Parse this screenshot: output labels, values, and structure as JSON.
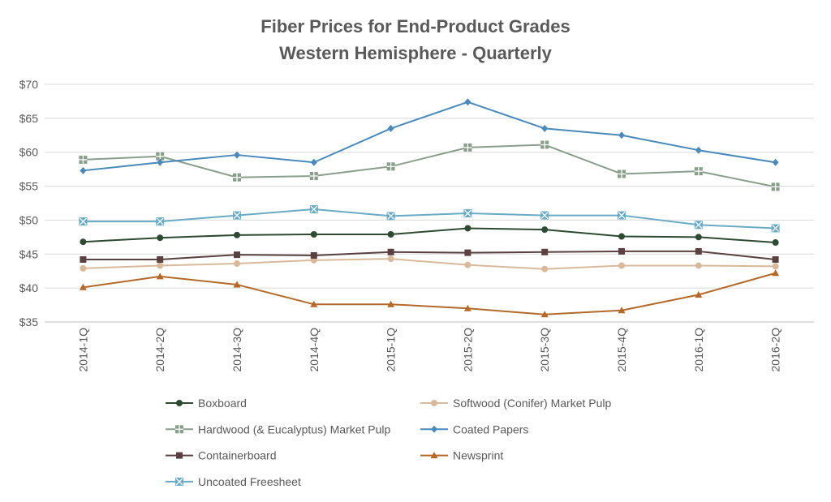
{
  "chart_data": {
    "type": "line",
    "title": "Fiber Prices for End-Product Grades",
    "subtitle": "Western Hemisphere - Quarterly",
    "xlabel": "",
    "ylabel": "",
    "ylim": [
      35,
      70
    ],
    "y_ticks": [
      35,
      40,
      45,
      50,
      55,
      60,
      65,
      70
    ],
    "y_tick_labels": [
      "$35",
      "$40",
      "$45",
      "$50",
      "$55",
      "$60",
      "$65",
      "$70"
    ],
    "grid": "horizontal",
    "legend_position": "bottom",
    "categories": [
      "2014-1Q",
      "2014-2Q",
      "2014-3Q",
      "2014-4Q",
      "2015-1Q",
      "2015-2Q",
      "2015-3Q",
      "2015-4Q",
      "2016-1Q",
      "2016-2Q"
    ],
    "series": [
      {
        "name": "Boxboard",
        "color": "#2e4a32",
        "marker": "circle",
        "values": [
          46.8,
          47.4,
          47.8,
          47.9,
          47.9,
          48.8,
          48.6,
          47.6,
          47.5,
          46.7
        ]
      },
      {
        "name": "Softwood (Conifer) Market Pulp",
        "color": "#d9b99b",
        "marker": "circle",
        "values": [
          42.9,
          43.3,
          43.6,
          44.1,
          44.3,
          43.4,
          42.8,
          43.3,
          43.3,
          43.2
        ]
      },
      {
        "name": "Hardwood (& Eucalyptus) Market Pulp",
        "color": "#8a9e8c",
        "marker": "plus-square",
        "values": [
          58.9,
          59.4,
          56.3,
          56.5,
          57.9,
          60.7,
          61.1,
          56.8,
          57.2,
          54.9
        ]
      },
      {
        "name": "Coated Papers",
        "color": "#4a89b9",
        "marker": "diamond",
        "values": [
          57.3,
          58.5,
          59.6,
          58.5,
          63.5,
          67.4,
          63.5,
          62.5,
          60.3,
          58.5
        ]
      },
      {
        "name": "Containerboard",
        "color": "#5a4040",
        "marker": "square",
        "values": [
          44.2,
          44.2,
          44.9,
          44.8,
          45.3,
          45.2,
          45.3,
          45.4,
          45.4,
          44.2
        ]
      },
      {
        "name": "Newsprint",
        "color": "#b4692a",
        "marker": "triangle",
        "values": [
          40.1,
          41.7,
          40.5,
          37.6,
          37.6,
          37.0,
          36.1,
          36.7,
          39.0,
          42.2
        ]
      },
      {
        "name": "Uncoated Freesheet",
        "color": "#6aaac4",
        "marker": "x-square",
        "values": [
          49.8,
          49.8,
          50.7,
          51.6,
          50.6,
          51.0,
          50.7,
          50.7,
          49.3,
          48.8
        ]
      }
    ]
  }
}
